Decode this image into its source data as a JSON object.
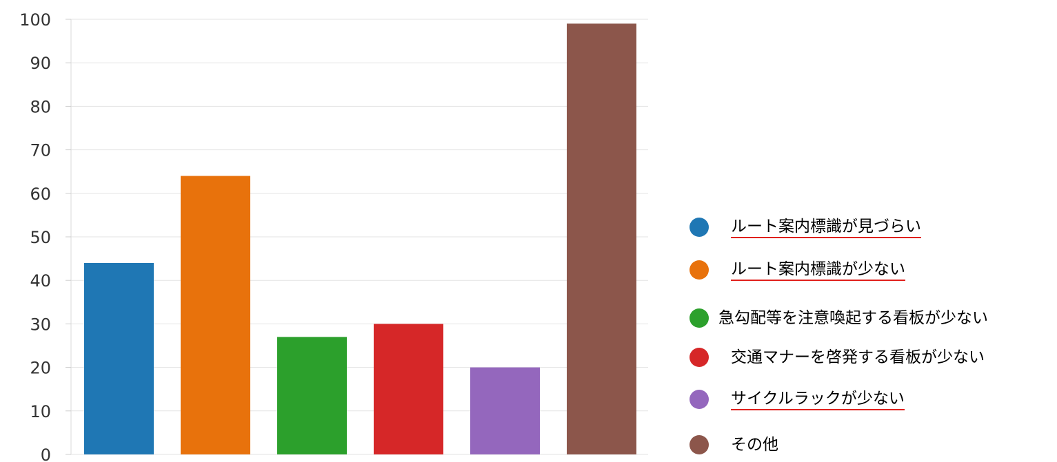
{
  "chart_data": {
    "type": "bar",
    "title": "",
    "xlabel": "",
    "ylabel": "",
    "ylim": [
      0,
      100
    ],
    "yticks": [
      "0",
      "10",
      "20",
      "30",
      "40",
      "50",
      "60",
      "70",
      "80",
      "90",
      "100"
    ],
    "grid": true,
    "legend_position": "right",
    "categories": [
      "ルート案内標識が見づらい",
      "ルート案内標識が少ない",
      "急勾配等を注意喚起する看板が少ない",
      "交通マナーを啓発する看板が少ない",
      "サイクルラックが少ない",
      "その他"
    ],
    "values": [
      44,
      64,
      27,
      30,
      20,
      99
    ],
    "colors": [
      "#1f77b4",
      "#e8720c",
      "#2ca02c",
      "#d62728",
      "#9467bd",
      "#8c564b"
    ],
    "legend_underline_color": "#e0201c",
    "legend_underlined": [
      true,
      true,
      false,
      false,
      true,
      false
    ]
  }
}
